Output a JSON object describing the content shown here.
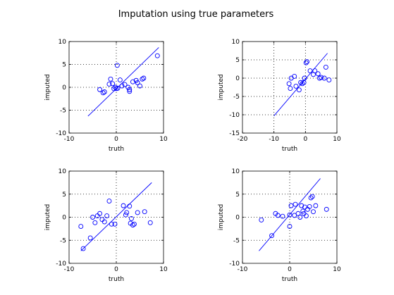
{
  "figure": {
    "title": "Imputation using true parameters"
  },
  "chart_data": [
    {
      "type": "scatter",
      "title": "",
      "xlabel": "truth",
      "ylabel": "imputed",
      "xlim": [
        -10,
        10
      ],
      "ylim": [
        -10,
        10
      ],
      "xticks": [
        -10,
        0,
        10
      ],
      "yticks": [
        -10,
        -5,
        0,
        5,
        10
      ],
      "grid": true,
      "fit_line": [
        [
          -6,
          -6.3
        ],
        [
          9,
          8.7
        ]
      ],
      "points": [
        [
          -3.5,
          -0.5
        ],
        [
          -2.8,
          -1.2
        ],
        [
          -2.5,
          -1.0
        ],
        [
          -1.5,
          0.7
        ],
        [
          -1.2,
          1.8
        ],
        [
          -0.8,
          0.8
        ],
        [
          -0.5,
          -0.3
        ],
        [
          -0.2,
          0.0
        ],
        [
          0.0,
          -0.3
        ],
        [
          0.3,
          -0.2
        ],
        [
          0.2,
          4.8
        ],
        [
          0.8,
          1.6
        ],
        [
          1.2,
          0.3
        ],
        [
          1.8,
          0.6
        ],
        [
          2.5,
          0.0
        ],
        [
          2.8,
          -0.5
        ],
        [
          2.8,
          -0.9
        ],
        [
          3.5,
          1.2
        ],
        [
          4.2,
          1.5
        ],
        [
          4.5,
          1.0
        ],
        [
          5.0,
          0.3
        ],
        [
          5.5,
          1.8
        ],
        [
          5.8,
          2.0
        ],
        [
          8.7,
          6.9
        ]
      ]
    },
    {
      "type": "scatter",
      "title": "",
      "xlabel": "truth",
      "ylabel": "imputed",
      "xlim": [
        -20,
        10
      ],
      "ylim": [
        -15,
        10
      ],
      "xticks": [
        -20,
        -10,
        0,
        10
      ],
      "yticks": [
        -15,
        -10,
        -5,
        0,
        5,
        10
      ],
      "grid": true,
      "fit_line": [
        [
          -10,
          -10.3
        ],
        [
          7,
          6.8
        ]
      ],
      "points": [
        [
          -5.2,
          -1.5
        ],
        [
          -4.8,
          -2.8
        ],
        [
          -4.5,
          0.0
        ],
        [
          -3.5,
          0.5
        ],
        [
          -3.0,
          -2.2
        ],
        [
          -2.0,
          -3.2
        ],
        [
          -1.5,
          -1.2
        ],
        [
          -1.0,
          -1.5
        ],
        [
          -0.5,
          -1.2
        ],
        [
          -0.3,
          0.0
        ],
        [
          0.2,
          4.2
        ],
        [
          0.5,
          4.5
        ],
        [
          1.5,
          2.0
        ],
        [
          2.5,
          1.0
        ],
        [
          3.0,
          2.0
        ],
        [
          4.0,
          1.2
        ],
        [
          4.5,
          0.0
        ],
        [
          5.0,
          0.2
        ],
        [
          6.0,
          0.0
        ],
        [
          6.5,
          3.0
        ],
        [
          7.5,
          -0.5
        ]
      ]
    },
    {
      "type": "scatter",
      "title": "",
      "xlabel": "truth",
      "ylabel": "imputed",
      "xlim": [
        -10,
        10
      ],
      "ylim": [
        -10,
        10
      ],
      "xticks": [
        -10,
        0,
        10
      ],
      "yticks": [
        -10,
        -5,
        0,
        5,
        10
      ],
      "grid": true,
      "fit_line": [
        [
          -7.5,
          -7.3
        ],
        [
          7.5,
          7.5
        ]
      ],
      "points": [
        [
          -7.5,
          -2.0
        ],
        [
          -7.0,
          -6.8
        ],
        [
          -5.5,
          -4.5
        ],
        [
          -5.0,
          0.0
        ],
        [
          -4.5,
          -1.2
        ],
        [
          -4.0,
          0.3
        ],
        [
          -3.5,
          0.8
        ],
        [
          -3.0,
          -0.5
        ],
        [
          -2.5,
          -1.0
        ],
        [
          -2.0,
          0.3
        ],
        [
          -1.5,
          3.5
        ],
        [
          -1.0,
          -1.5
        ],
        [
          -0.3,
          -1.5
        ],
        [
          1.5,
          2.5
        ],
        [
          2.0,
          0.5
        ],
        [
          2.2,
          1.0
        ],
        [
          2.8,
          2.4
        ],
        [
          3.0,
          -1.3
        ],
        [
          3.2,
          -0.3
        ],
        [
          3.5,
          -1.7
        ],
        [
          3.8,
          -1.5
        ],
        [
          4.5,
          1.0
        ],
        [
          6.0,
          1.2
        ],
        [
          7.2,
          -1.2
        ]
      ]
    },
    {
      "type": "scatter",
      "title": "",
      "xlabel": "truth",
      "ylabel": "imputed",
      "xlim": [
        -10,
        10
      ],
      "ylim": [
        -10,
        10
      ],
      "xticks": [
        -10,
        0,
        10
      ],
      "yticks": [
        -10,
        -5,
        0,
        5,
        10
      ],
      "grid": true,
      "fit_line": [
        [
          -6.5,
          -7.3
        ],
        [
          6.5,
          8.4
        ]
      ],
      "points": [
        [
          -6.0,
          -0.6
        ],
        [
          -3.8,
          -4.0
        ],
        [
          -3.0,
          0.8
        ],
        [
          -2.5,
          0.4
        ],
        [
          -1.5,
          0.2
        ],
        [
          0.0,
          -2.0
        ],
        [
          0.0,
          0.5
        ],
        [
          0.3,
          2.5
        ],
        [
          1.0,
          0.4
        ],
        [
          1.2,
          2.8
        ],
        [
          1.8,
          0.8
        ],
        [
          2.2,
          0.0
        ],
        [
          2.5,
          2.5
        ],
        [
          2.8,
          1.3
        ],
        [
          3.0,
          0.8
        ],
        [
          3.2,
          2.2
        ],
        [
          3.5,
          0.3
        ],
        [
          3.8,
          1.7
        ],
        [
          4.2,
          2.3
        ],
        [
          4.5,
          4.2
        ],
        [
          4.8,
          4.5
        ],
        [
          5.0,
          1.2
        ],
        [
          5.5,
          2.5
        ],
        [
          7.8,
          1.7
        ]
      ]
    }
  ]
}
